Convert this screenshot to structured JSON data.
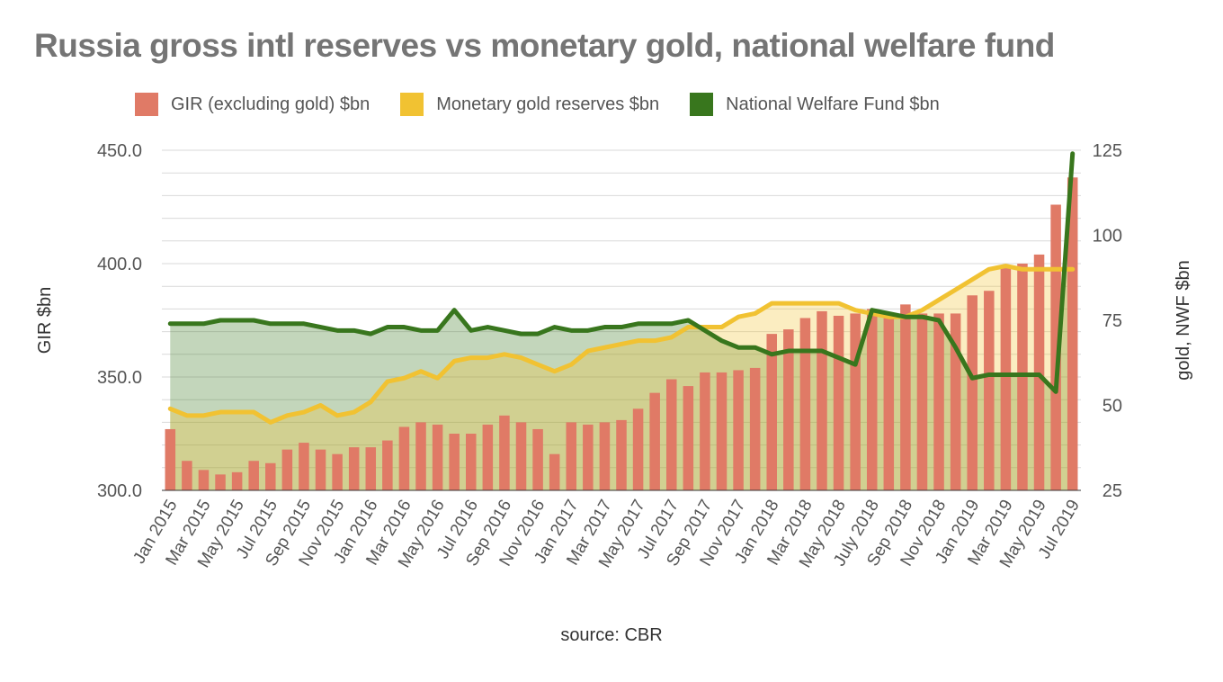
{
  "chart_data": {
    "title": "Russia gross intl reserves vs monetary gold, national welfare fund",
    "source": "source: CBR",
    "type": "bar",
    "left_axis": {
      "label": "GIR $bn",
      "range": [
        300,
        450
      ],
      "ticks": [
        "300.0",
        "350.0",
        "400.0",
        "450.0"
      ]
    },
    "right_axis": {
      "label": "gold, NWF $bn",
      "range": [
        25,
        125
      ],
      "ticks": [
        "25",
        "50",
        "75",
        "100",
        "125"
      ]
    },
    "legend_position": "top",
    "grid": true,
    "categories": [
      "Jan 2015",
      "Feb 2015",
      "Mar 2015",
      "Apr 2015",
      "May 2015",
      "Jun 2015",
      "Jul 2015",
      "Aug 2015",
      "Sep 2015",
      "Oct 2015",
      "Nov 2015",
      "Dec 2015",
      "Jan 2016",
      "Feb 2016",
      "Mar 2016",
      "Apr 2016",
      "May 2016",
      "Jun 2016",
      "Jul 2016",
      "Aug 2016",
      "Sep 2016",
      "Oct 2016",
      "Nov 2016",
      "Dec 2016",
      "Jan 2017",
      "Feb 2017",
      "Mar 2017",
      "Apr 2017",
      "May 2017",
      "Jun 2017",
      "Jul 2017",
      "Aug 2017",
      "Sep 2017",
      "Oct 2017",
      "Nov 2017",
      "Dec 2017",
      "Jan 2018",
      "Feb 2018",
      "Mar 2018",
      "Apr 2018",
      "May 2018",
      "Jun 2018",
      "July 2018",
      "Aug 2018",
      "Sep 2018",
      "Oct 2018",
      "Nov 2018",
      "Dec 2018",
      "Jan 2019",
      "Feb 2019",
      "Mar 2019",
      "Apr 2019",
      "May 2019",
      "Jun 2019",
      "Jul 2019"
    ],
    "tick_labels": [
      "Jan 2015",
      "Mar 2015",
      "May 2015",
      "Jul 2015",
      "Sep 2015",
      "Nov 2015",
      "Jan 2016",
      "Mar 2016",
      "May 2016",
      "Jul 2016",
      "Sep 2016",
      "Nov 2016",
      "Jan 2017",
      "Mar 2017",
      "May 2017",
      "Jul 2017",
      "Sep 2017",
      "Nov 2017",
      "Jan 2018",
      "Mar 2018",
      "May 2018",
      "July 2018",
      "Sep 2018",
      "Nov 2018",
      "Jan 2019",
      "Mar 2019",
      "May 2019",
      "Jul 2019"
    ],
    "series": [
      {
        "name": "GIR (excluding gold) $bn",
        "axis": "left",
        "type": "bar",
        "color": "#E07A66",
        "values": [
          327,
          313,
          309,
          307,
          308,
          313,
          312,
          318,
          321,
          318,
          316,
          319,
          319,
          322,
          328,
          330,
          329,
          325,
          325,
          329,
          333,
          330,
          327,
          316,
          330,
          329,
          330,
          331,
          336,
          343,
          349,
          346,
          352,
          352,
          353,
          354,
          369,
          371,
          376,
          379,
          377,
          378,
          380,
          378,
          382,
          378,
          378,
          378,
          386,
          388,
          398,
          400,
          404,
          426,
          438
        ]
      },
      {
        "name": "Monetary gold reserves $bn",
        "axis": "right",
        "type": "area-line",
        "color": "#F1C232",
        "values": [
          49,
          47,
          47,
          48,
          48,
          48,
          45,
          47,
          48,
          50,
          47,
          48,
          51,
          57,
          58,
          60,
          58,
          63,
          64,
          64,
          65,
          64,
          62,
          60,
          62,
          66,
          67,
          68,
          69,
          69,
          70,
          73,
          73,
          73,
          76,
          77,
          80,
          80,
          80,
          80,
          80,
          78,
          77,
          76,
          76,
          78,
          81,
          84,
          87,
          90,
          91,
          90,
          90,
          90,
          90
        ]
      },
      {
        "name": "National Welfare Fund $bn",
        "axis": "right",
        "type": "area-line",
        "color": "#38761D",
        "values": [
          74,
          74,
          74,
          75,
          75,
          75,
          74,
          74,
          74,
          73,
          72,
          72,
          71,
          73,
          73,
          72,
          72,
          78,
          72,
          73,
          72,
          71,
          71,
          73,
          72,
          72,
          73,
          73,
          74,
          74,
          74,
          75,
          72,
          69,
          67,
          67,
          65,
          66,
          66,
          66,
          64,
          62,
          78,
          77,
          76,
          76,
          75,
          67,
          58,
          59,
          59,
          59,
          59,
          54,
          124
        ]
      }
    ]
  }
}
